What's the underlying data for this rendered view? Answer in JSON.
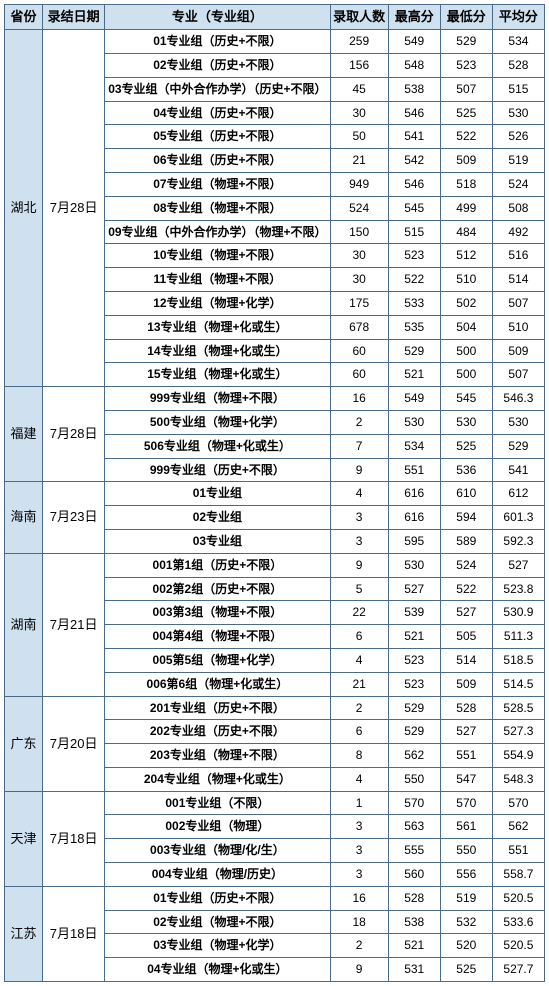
{
  "headers": {
    "province": "省份",
    "date": "录结日期",
    "major": "专业（专业组）",
    "count": "录取人数",
    "max": "最高分",
    "min": "最低分",
    "avg": "平均分"
  },
  "groups": [
    {
      "province": "湖北",
      "date": "7月28日",
      "rows": [
        {
          "major": "01专业组（历史+不限）",
          "count": 259,
          "max": 549,
          "min": 529,
          "avg": 534
        },
        {
          "major": "02专业组（历史+不限）",
          "count": 156,
          "max": 548,
          "min": 523,
          "avg": 528
        },
        {
          "major": "03专业组（中外合作办学）（历史+不限）",
          "count": 45,
          "max": 538,
          "min": 507,
          "avg": 515
        },
        {
          "major": "04专业组（历史+不限）",
          "count": 30,
          "max": 546,
          "min": 525,
          "avg": 530
        },
        {
          "major": "05专业组（历史+不限）",
          "count": 50,
          "max": 541,
          "min": 522,
          "avg": 526
        },
        {
          "major": "06专业组（历史+不限）",
          "count": 21,
          "max": 542,
          "min": 509,
          "avg": 519
        },
        {
          "major": "07专业组（物理+不限）",
          "count": 949,
          "max": 546,
          "min": 518,
          "avg": 524
        },
        {
          "major": "08专业组（物理+不限）",
          "count": 524,
          "max": 545,
          "min": 499,
          "avg": 508
        },
        {
          "major": "09专业组（中外合作办学）（物理+不限）",
          "count": 150,
          "max": 515,
          "min": 484,
          "avg": 492
        },
        {
          "major": "10专业组（物理+不限）",
          "count": 30,
          "max": 523,
          "min": 512,
          "avg": 516
        },
        {
          "major": "11专业组（物理+不限）",
          "count": 30,
          "max": 522,
          "min": 510,
          "avg": 514
        },
        {
          "major": "12专业组（物理+化学）",
          "count": 175,
          "max": 533,
          "min": 502,
          "avg": 507
        },
        {
          "major": "13专业组（物理+化或生）",
          "count": 678,
          "max": 535,
          "min": 504,
          "avg": 510
        },
        {
          "major": "14专业组（物理+化或生）",
          "count": 60,
          "max": 529,
          "min": 500,
          "avg": 509
        },
        {
          "major": "15专业组（物理+化或生）",
          "count": 60,
          "max": 521,
          "min": 500,
          "avg": 507
        }
      ]
    },
    {
      "province": "福建",
      "date": "7月28日",
      "rows": [
        {
          "major": "999专业组（物理+不限）",
          "count": 16,
          "max": 549,
          "min": 545,
          "avg": 546.3
        },
        {
          "major": "500专业组（物理+化学）",
          "count": 2,
          "max": 530,
          "min": 530,
          "avg": 530
        },
        {
          "major": "506专业组（物理+化或生）",
          "count": 7,
          "max": 534,
          "min": 525,
          "avg": 529
        },
        {
          "major": "999专业组（历史+不限）",
          "count": 9,
          "max": 551,
          "min": 536,
          "avg": 541
        }
      ]
    },
    {
      "province": "海南",
      "date": "7月23日",
      "rows": [
        {
          "major": "01专业组",
          "count": 4,
          "max": 616,
          "min": 610,
          "avg": 612
        },
        {
          "major": "02专业组",
          "count": 3,
          "max": 616,
          "min": 594,
          "avg": 601.3
        },
        {
          "major": "03专业组",
          "count": 3,
          "max": 595,
          "min": 589,
          "avg": 592.3
        }
      ]
    },
    {
      "province": "湖南",
      "date": "7月21日",
      "rows": [
        {
          "major": "001第1组（历史+不限）",
          "count": 9,
          "max": 530,
          "min": 524,
          "avg": 527
        },
        {
          "major": "002第2组（历史+不限）",
          "count": 5,
          "max": 527,
          "min": 522,
          "avg": 523.8
        },
        {
          "major": "003第3组（物理+不限）",
          "count": 22,
          "max": 539,
          "min": 527,
          "avg": 530.9
        },
        {
          "major": "004第4组（物理+不限）",
          "count": 6,
          "max": 521,
          "min": 505,
          "avg": 511.3
        },
        {
          "major": "005第5组（物理+化学）",
          "count": 4,
          "max": 523,
          "min": 514,
          "avg": 518.5
        },
        {
          "major": "006第6组（物理+化或生）",
          "count": 21,
          "max": 523,
          "min": 509,
          "avg": 514.5
        }
      ]
    },
    {
      "province": "广东",
      "date": "7月20日",
      "rows": [
        {
          "major": "201专业组（历史+不限）",
          "count": 2,
          "max": 529,
          "min": 528,
          "avg": 528.5
        },
        {
          "major": "202专业组（历史+不限）",
          "count": 6,
          "max": 529,
          "min": 527,
          "avg": 527.3
        },
        {
          "major": "203专业组（物理+不限）",
          "count": 8,
          "max": 562,
          "min": 551,
          "avg": 554.9
        },
        {
          "major": "204专业组（物理+化或生）",
          "count": 4,
          "max": 550,
          "min": 547,
          "avg": 548.3
        }
      ]
    },
    {
      "province": "天津",
      "date": "7月18日",
      "rows": [
        {
          "major": "001专业组（不限）",
          "count": 1,
          "max": 570,
          "min": 570,
          "avg": 570
        },
        {
          "major": "002专业组（物理）",
          "count": 3,
          "max": 563,
          "min": 561,
          "avg": 562
        },
        {
          "major": "003专业组（物理/化/生）",
          "count": 3,
          "max": 555,
          "min": 550,
          "avg": 551
        },
        {
          "major": "004专业组（物理/历史）",
          "count": 3,
          "max": 560,
          "min": 556,
          "avg": 558.7
        }
      ]
    },
    {
      "province": "江苏",
      "date": "7月18日",
      "rows": [
        {
          "major": "01专业组（历史+不限）",
          "count": 16,
          "max": 528,
          "min": 519,
          "avg": 520.5
        },
        {
          "major": "02专业组（物理+不限）",
          "count": 18,
          "max": 538,
          "min": 532,
          "avg": 533.6
        },
        {
          "major": "03专业组（物理+化学）",
          "count": 2,
          "max": 521,
          "min": 520,
          "avg": 520.5
        },
        {
          "major": "04专业组（物理+化或生）",
          "count": 9,
          "max": 531,
          "min": 525,
          "avg": 527.7
        }
      ]
    }
  ]
}
